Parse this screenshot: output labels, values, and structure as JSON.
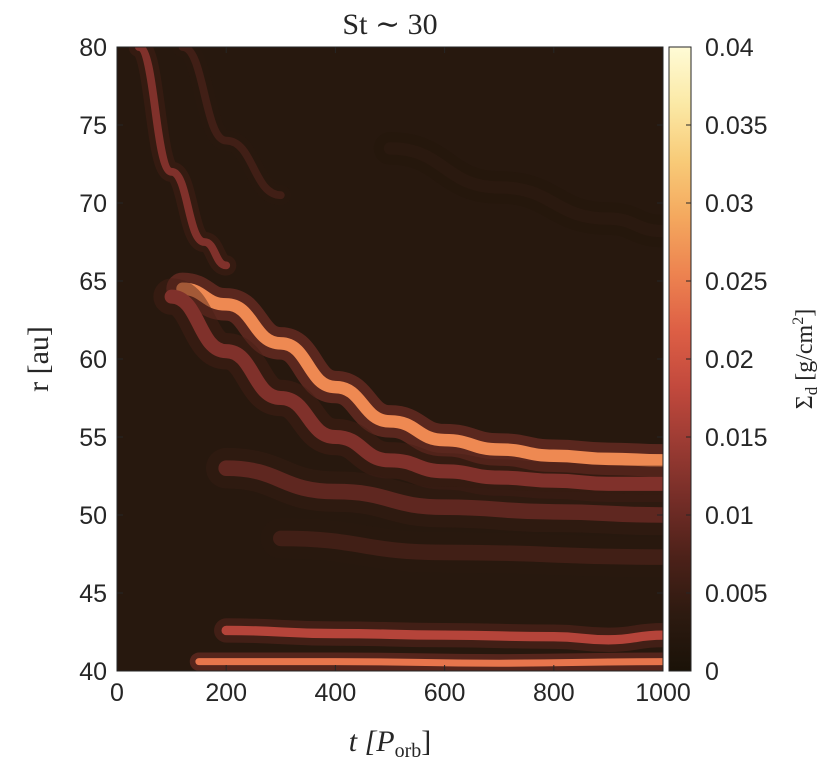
{
  "chart_data": {
    "type": "heatmap",
    "title": "St ∼ 30",
    "xlabel": "t [P",
    "xlabel_sub": "orb",
    "xlabel_close": "]",
    "ylabel": "r [au]",
    "colorbar_label": "Σ",
    "colorbar_label_sub": "d",
    "colorbar_label_rest": " [g/cm",
    "colorbar_label_sup": "2",
    "colorbar_label_close": "]",
    "xlim": [
      0,
      1000
    ],
    "ylim": [
      40,
      80
    ],
    "clim": [
      0,
      0.04
    ],
    "xticks": [
      "0",
      "200",
      "400",
      "600",
      "800",
      "1000"
    ],
    "yticks": [
      "40",
      "45",
      "50",
      "55",
      "60",
      "65",
      "70",
      "75",
      "80"
    ],
    "cticks": [
      "0",
      "0.005",
      "0.01",
      "0.015",
      "0.02",
      "0.025",
      "0.03",
      "0.035",
      "0.04"
    ],
    "colormap": [
      "#1a1208",
      "#2d1a10",
      "#4c2119",
      "#742d27",
      "#9b3b33",
      "#c2493d",
      "#dd5f45",
      "#ed8350",
      "#f4a85e",
      "#f8cb78",
      "#fbe9a6",
      "#fffbd6"
    ],
    "background_level": 0.0025,
    "features": [
      {
        "name": "main ring",
        "t": [
          120,
          200,
          300,
          400,
          500,
          600,
          700,
          800,
          900,
          1000
        ],
        "r": [
          64.5,
          63.5,
          61.0,
          58.2,
          56.0,
          54.8,
          54.2,
          53.8,
          53.6,
          53.5
        ],
        "peak": 0.026,
        "width_au": 0.8
      },
      {
        "name": "secondary ring",
        "t": [
          100,
          200,
          300,
          400,
          500,
          600,
          700,
          800,
          900,
          1000
        ],
        "r": [
          64.0,
          60.5,
          57.5,
          55.0,
          53.5,
          52.8,
          52.4,
          52.2,
          52.0,
          52.0
        ],
        "peak": 0.012,
        "width_au": 0.9
      },
      {
        "name": "ring 50 au",
        "t": [
          200,
          400,
          600,
          800,
          1000
        ],
        "r": [
          53.0,
          51.5,
          50.5,
          50.2,
          50.0
        ],
        "peak": 0.009,
        "width_au": 1.0
      },
      {
        "name": "inner ring 47 au",
        "t": [
          300,
          600,
          1000
        ],
        "r": [
          48.5,
          47.6,
          47.3
        ],
        "peak": 0.006,
        "width_au": 1.0
      },
      {
        "name": "ring 42 au",
        "t": [
          200,
          400,
          600,
          800,
          900,
          1000
        ],
        "r": [
          42.6,
          42.4,
          42.3,
          42.2,
          42.0,
          42.3
        ],
        "peak": 0.017,
        "width_au": 0.6
      },
      {
        "name": "ring 40.5 au",
        "t": [
          150,
          400,
          700,
          1000
        ],
        "r": [
          40.6,
          40.6,
          40.5,
          40.6
        ],
        "peak": 0.024,
        "width_au": 0.45
      },
      {
        "name": "early spiral 1",
        "t": [
          40,
          100,
          160,
          200
        ],
        "r": [
          80.0,
          72.0,
          67.5,
          66.0
        ],
        "peak": 0.012,
        "width_au": 0.5
      },
      {
        "name": "early spiral 2",
        "t": [
          120,
          200,
          300
        ],
        "r": [
          80.0,
          74.0,
          70.5
        ],
        "peak": 0.006,
        "width_au": 0.5
      },
      {
        "name": "faint outer band",
        "t": [
          500,
          700,
          900,
          1000
        ],
        "r": [
          73.5,
          71.0,
          69.0,
          68.2
        ],
        "peak": 0.003,
        "width_au": 0.8
      }
    ]
  }
}
